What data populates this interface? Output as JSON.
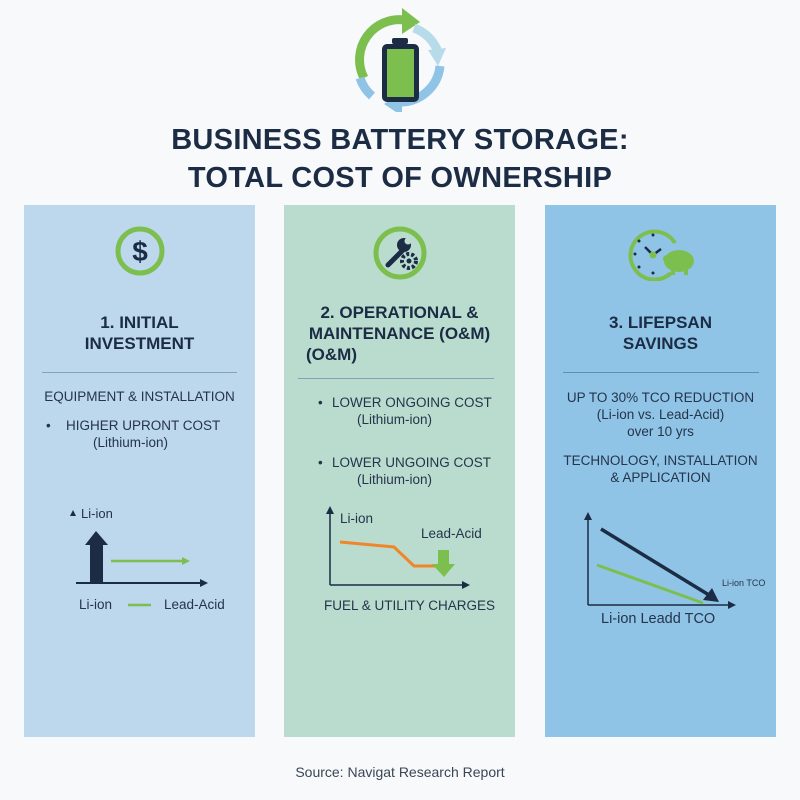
{
  "header": {
    "title_line1": "BUSINESS BATTERY STORAGE:",
    "title_line2": "TOTAL COST OF OWNERSHIP",
    "icon": "battery-cycle-icon"
  },
  "panels": [
    {
      "title_line1": "1. INITIAL",
      "title_line2": "INVESTMENT",
      "icon": "dollar-icon",
      "subhead": "EQUIPMENT & INSTALLATION",
      "bullet1": "HIGHER UPRONT COST",
      "bullet1_sub": "(Lithium-ion)",
      "chart": {
        "top_label": "Li-ion",
        "legend_a": "Li-ion",
        "legend_b": "Lead-Acid"
      },
      "color": "#bdd7ec"
    },
    {
      "title_line1": "2. OPERATIONAL &",
      "title_line2": "MAINTENANCE (O&M)",
      "title_line3": "(O&M)",
      "icon": "wrench-gear-icon",
      "bullet1": "LOWER ONGOING COST",
      "bullet1_sub": "(Lithium-ion)",
      "bullet2": "LOWER UNGOING COST",
      "bullet2_sub": "(Lithium-ion)",
      "chart": {
        "top_label": "Li-ion",
        "series_label": "Lead-Acid",
        "x_label": "FUEL & UTILITY CHARGES"
      },
      "color": "#badccf"
    },
    {
      "title_line1": "3. LIFEPSAN",
      "title_line2": "SAVINGS",
      "icon": "clock-piggy-bank-icon",
      "line1": "UP TO 30% TCO REDUCTION",
      "line2": "(Li-ion vs. Lead-Acid)",
      "line3": "over 10 yrs",
      "line4": "TECHNOLOGY, INSTALLATION",
      "line5": "& APPLICATION",
      "chart": {
        "series_label": "Li-ion TCO",
        "x_label": "Li-ion Leadd TCO"
      },
      "color": "#8fc4e7"
    }
  ],
  "footer": {
    "source": "Source: Navigat Research Report"
  },
  "colors": {
    "navy": "#1b2c44",
    "green": "#7dbf4e",
    "orange": "#f0862a",
    "light_blue": "#8fc4e7"
  }
}
